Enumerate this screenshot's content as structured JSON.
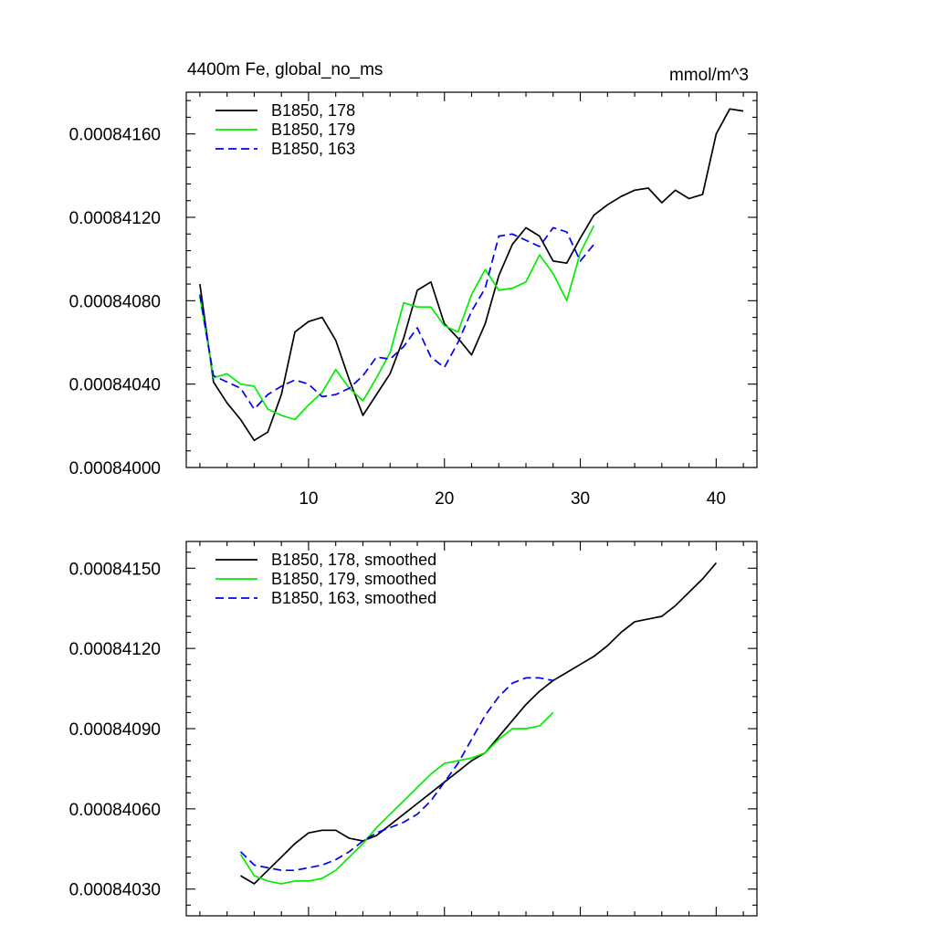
{
  "chart_data": [
    {
      "type": "line",
      "title_left": "4400m Fe, global_no_ms",
      "title_right": "mmol/m^3",
      "xlim": [
        1,
        43
      ],
      "ylim": [
        0.00084,
        0.0008418
      ],
      "x_ticks": [
        10,
        20,
        30,
        40
      ],
      "x_tick_labels": [
        "10",
        "20",
        "30",
        "40"
      ],
      "y_ticks": [
        0.00084,
        0.0008404,
        0.0008408,
        0.0008412,
        0.0008416
      ],
      "y_tick_labels": [
        "0.00084000",
        "0.00084040",
        "0.00084080",
        "0.00084120",
        "0.00084160"
      ],
      "legend_position": "top-left",
      "series": [
        {
          "name": "B1850, 178",
          "color": "#000000",
          "dash": "solid",
          "x": [
            2,
            3,
            4,
            5,
            6,
            7,
            8,
            9,
            10,
            11,
            12,
            13,
            14,
            15,
            16,
            17,
            18,
            19,
            20,
            21,
            22,
            23,
            24,
            25,
            26,
            27,
            28,
            29,
            30,
            31,
            32,
            33,
            34,
            35,
            36,
            37,
            38,
            39,
            40,
            41,
            42
          ],
          "values": [
            0.00084088,
            0.00084041,
            0.00084031,
            0.00084023,
            0.00084013,
            0.00084017,
            0.00084035,
            0.00084065,
            0.0008407,
            0.00084072,
            0.00084061,
            0.00084042,
            0.00084025,
            0.00084035,
            0.00084045,
            0.00084062,
            0.00084085,
            0.00084089,
            0.00084069,
            0.00084062,
            0.00084054,
            0.00084069,
            0.00084092,
            0.00084107,
            0.00084115,
            0.00084111,
            0.00084099,
            0.00084098,
            0.0008411,
            0.00084121,
            0.00084126,
            0.0008413,
            0.00084133,
            0.00084134,
            0.00084127,
            0.00084133,
            0.00084129,
            0.00084131,
            0.0008416,
            0.00084172,
            0.00084171
          ]
        },
        {
          "name": "B1850, 179",
          "color": "#00ee00",
          "dash": "solid",
          "x": [
            2,
            3,
            4,
            5,
            6,
            7,
            8,
            9,
            10,
            11,
            12,
            13,
            14,
            15,
            16,
            17,
            18,
            19,
            20,
            21,
            22,
            23,
            24,
            25,
            26,
            27,
            28,
            29,
            30,
            31
          ],
          "values": [
            0.00084082,
            0.00084043,
            0.00084045,
            0.0008404,
            0.00084039,
            0.00084028,
            0.00084025,
            0.00084023,
            0.0008403,
            0.00084036,
            0.00084047,
            0.00084038,
            0.00084032,
            0.00084043,
            0.00084055,
            0.00084079,
            0.00084077,
            0.00084077,
            0.00084068,
            0.00084065,
            0.00084083,
            0.00084095,
            0.00084085,
            0.00084086,
            0.00084089,
            0.00084102,
            0.00084093,
            0.0008408,
            0.00084103,
            0.00084116
          ]
        },
        {
          "name": "B1850, 163",
          "color": "#0000ee",
          "dash": "dashed",
          "x": [
            2,
            3,
            4,
            5,
            6,
            7,
            8,
            9,
            10,
            11,
            12,
            13,
            14,
            15,
            16,
            17,
            18,
            19,
            20,
            21,
            22,
            23,
            24,
            25,
            26,
            27,
            28,
            29,
            30,
            31
          ],
          "values": [
            0.00084083,
            0.00084044,
            0.00084041,
            0.00084038,
            0.00084028,
            0.00084035,
            0.00084039,
            0.00084042,
            0.0008404,
            0.00084034,
            0.00084035,
            0.00084038,
            0.00084044,
            0.00084053,
            0.00084052,
            0.00084058,
            0.00084067,
            0.00084053,
            0.00084048,
            0.0008406,
            0.00084075,
            0.00084086,
            0.00084111,
            0.00084112,
            0.00084109,
            0.00084106,
            0.00084115,
            0.00084113,
            0.00084099,
            0.00084107
          ]
        }
      ]
    },
    {
      "type": "line",
      "xlim": [
        1,
        43
      ],
      "ylim": [
        0.0008402,
        0.0008416
      ],
      "x_ticks": [
        10,
        20,
        30,
        40
      ],
      "y_ticks": [
        0.0008403,
        0.0008406,
        0.0008409,
        0.0008412,
        0.0008415
      ],
      "y_tick_labels": [
        "0.00084030",
        "0.00084060",
        "0.00084090",
        "0.00084120",
        "0.00084150"
      ],
      "legend_position": "top-left",
      "series": [
        {
          "name": "B1850, 178, smoothed",
          "color": "#000000",
          "dash": "solid",
          "x": [
            5,
            6,
            7,
            8,
            9,
            10,
            11,
            12,
            13,
            14,
            15,
            16,
            17,
            18,
            19,
            20,
            21,
            22,
            23,
            24,
            25,
            26,
            27,
            28,
            29,
            30,
            31,
            32,
            33,
            34,
            35,
            36,
            37,
            38,
            39,
            40
          ],
          "values": [
            0.00084035,
            0.00084032,
            0.00084037,
            0.00084042,
            0.00084047,
            0.00084051,
            0.00084052,
            0.00084052,
            0.00084049,
            0.00084048,
            0.0008405,
            0.00084054,
            0.00084058,
            0.00084062,
            0.00084066,
            0.0008407,
            0.00084074,
            0.00084078,
            0.00084081,
            0.00084087,
            0.00084093,
            0.00084099,
            0.00084104,
            0.00084108,
            0.00084111,
            0.00084114,
            0.00084117,
            0.00084121,
            0.00084126,
            0.0008413,
            0.00084131,
            0.00084132,
            0.00084136,
            0.00084141,
            0.00084146,
            0.00084152
          ]
        },
        {
          "name": "B1850, 179, smoothed",
          "color": "#00ee00",
          "dash": "solid",
          "x": [
            5,
            6,
            7,
            8,
            9,
            10,
            11,
            12,
            13,
            14,
            15,
            16,
            17,
            18,
            19,
            20,
            21,
            22,
            23,
            24,
            25,
            26,
            27,
            28
          ],
          "values": [
            0.00084043,
            0.00084035,
            0.00084033,
            0.00084032,
            0.00084033,
            0.00084033,
            0.00084034,
            0.00084037,
            0.00084042,
            0.00084047,
            0.00084053,
            0.00084058,
            0.00084063,
            0.00084068,
            0.00084073,
            0.00084077,
            0.00084078,
            0.00084079,
            0.00084081,
            0.00084086,
            0.0008409,
            0.0008409,
            0.00084091,
            0.00084096
          ]
        },
        {
          "name": "B1850, 163, smoothed",
          "color": "#0000ee",
          "dash": "dashed",
          "x": [
            5,
            6,
            7,
            8,
            9,
            10,
            11,
            12,
            13,
            14,
            15,
            16,
            17,
            18,
            19,
            20,
            21,
            22,
            23,
            24,
            25,
            26,
            27,
            28
          ],
          "values": [
            0.00084044,
            0.00084039,
            0.00084038,
            0.00084037,
            0.00084037,
            0.00084038,
            0.00084039,
            0.00084041,
            0.00084044,
            0.00084048,
            0.00084051,
            0.00084053,
            0.00084055,
            0.00084058,
            0.00084063,
            0.0008407,
            0.00084077,
            0.00084086,
            0.00084095,
            0.00084102,
            0.00084107,
            0.00084109,
            0.00084109,
            0.00084108
          ]
        }
      ]
    }
  ]
}
